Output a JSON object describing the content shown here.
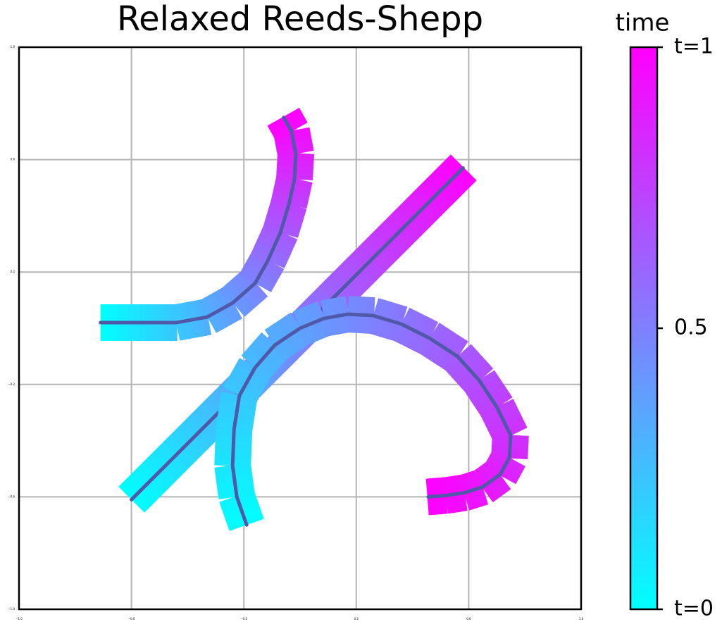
{
  "chart_data": {
    "type": "trajectory",
    "title": "Relaxed Reeds-Shepp",
    "xlim": [
      -1,
      1
    ],
    "ylim": [
      -1,
      1
    ],
    "xticks": [
      {
        "value": -1,
        "label": "−1.0"
      },
      {
        "value": -0.6,
        "label": "−0.6"
      },
      {
        "value": -0.2,
        "label": "−0.2"
      },
      0.2,
      0.6,
      {
        "value": 1,
        "label": "1.0"
      }
    ],
    "yticks": [
      {
        "value": -1,
        "label": "−1.0"
      },
      {
        "value": -0.6,
        "label": "−0.6"
      },
      {
        "value": -0.2,
        "label": "−0.2"
      },
      0.2,
      0.6,
      {
        "value": 1,
        "label": "1.0"
      }
    ],
    "grid": true,
    "colormap": [
      "#00ffff",
      "#ff00ff"
    ],
    "series": [
      {
        "color": "#5058a8",
        "x": [
          -0.6,
          -0.2,
          0.2,
          0.58
        ],
        "values": [
          -0.61,
          -0.21,
          0.19,
          0.57
        ]
      },
      {
        "color": "#5058a8",
        "x": [
          -0.71,
          -0.55,
          -0.44,
          -0.33,
          -0.24,
          -0.16,
          -0.115,
          -0.07,
          -0.04,
          -0.02,
          -0.015,
          -0.03,
          -0.058
        ],
        "values": [
          0.02,
          0.02,
          0.02,
          0.04,
          0.09,
          0.16,
          0.24,
          0.34,
          0.44,
          0.53,
          0.62,
          0.7,
          0.75
        ]
      },
      {
        "color": "#5058a8",
        "x": [
          -0.19,
          -0.225,
          -0.24,
          -0.235,
          -0.216,
          -0.16,
          -0.09,
          0.0,
          0.085,
          0.17,
          0.26,
          0.36,
          0.46,
          0.56,
          0.637,
          0.7,
          0.749,
          0.745,
          0.712,
          0.65,
          0.586,
          0.52,
          0.456
        ],
        "values": [
          -0.7,
          -0.6,
          -0.49,
          -0.36,
          -0.24,
          -0.14,
          -0.06,
          0.0,
          0.035,
          0.05,
          0.045,
          0.015,
          -0.035,
          -0.1,
          -0.185,
          -0.28,
          -0.38,
          -0.46,
          -0.52,
          -0.565,
          -0.585,
          -0.595,
          -0.6
        ]
      }
    ],
    "colorbar": {
      "title": "time",
      "lim": [
        0,
        1
      ],
      "ticks": [
        {
          "value": 0,
          "label": "t=0"
        },
        0.5,
        {
          "value": 1,
          "label": "t=1"
        }
      ]
    }
  }
}
